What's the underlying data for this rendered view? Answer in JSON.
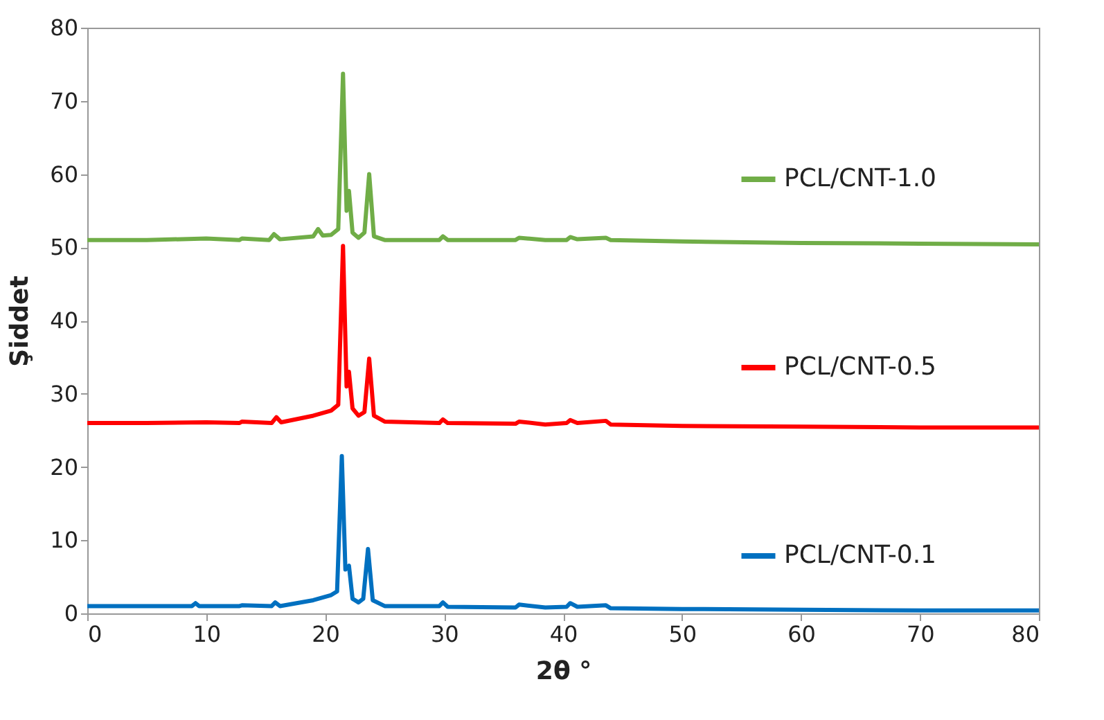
{
  "chart_data": {
    "type": "line",
    "xlabel": "2θ °",
    "ylabel": "Şiddet",
    "xlim": [
      0,
      80
    ],
    "ylim": [
      0,
      80
    ],
    "xticks": [
      0,
      10,
      20,
      30,
      40,
      50,
      60,
      70,
      80
    ],
    "yticks": [
      0,
      10,
      20,
      30,
      40,
      50,
      60,
      70,
      80
    ],
    "grid": false,
    "legend": "right",
    "line_style": "solid",
    "series": [
      {
        "name": "PCL/CNT-1.0",
        "color": "#70ad47",
        "x": [
          0,
          5,
          10,
          12.8,
          13,
          15.3,
          15.7,
          16.2,
          19,
          19.4,
          19.8,
          20.5,
          21.1,
          21.5,
          21.8,
          22.0,
          22.3,
          22.8,
          23.3,
          23.7,
          24.1,
          25,
          29.6,
          29.9,
          30.3,
          36,
          36.3,
          38.5,
          40.3,
          40.6,
          41.2,
          43.6,
          44,
          50,
          60,
          70,
          80
        ],
        "values": [
          51,
          51,
          51.2,
          51,
          51.2,
          51,
          51.8,
          51.1,
          51.5,
          52.5,
          51.6,
          51.7,
          52.5,
          73.7,
          55,
          57.7,
          52,
          51.3,
          52,
          60,
          51.5,
          51,
          51,
          51.5,
          51,
          51,
          51.3,
          51,
          51,
          51.4,
          51.1,
          51.3,
          51,
          50.8,
          50.6,
          50.5,
          50.4
        ]
      },
      {
        "name": "PCL/CNT-0.5",
        "color": "#ff0000",
        "x": [
          0,
          5,
          10,
          12.8,
          13,
          15.5,
          15.9,
          16.3,
          19,
          20.5,
          21.1,
          21.5,
          21.8,
          22.0,
          22.3,
          22.8,
          23.3,
          23.7,
          24.1,
          25,
          29.6,
          29.9,
          30.3,
          36,
          36.3,
          38.5,
          40.3,
          40.6,
          41.2,
          43.6,
          44,
          50,
          60,
          70,
          80
        ],
        "values": [
          26,
          26,
          26.1,
          26,
          26.2,
          26,
          26.8,
          26.1,
          27,
          27.7,
          28.5,
          50.2,
          31,
          33,
          28,
          27,
          27.5,
          34.8,
          27,
          26.2,
          26,
          26.5,
          26,
          25.9,
          26.2,
          25.8,
          26,
          26.4,
          26,
          26.3,
          25.8,
          25.6,
          25.5,
          25.4,
          25.4
        ]
      },
      {
        "name": "PCL/CNT-0.1",
        "color": "#0070c0",
        "x": [
          0,
          5,
          8.8,
          9.1,
          9.4,
          12.8,
          13,
          15.5,
          15.8,
          16.2,
          19,
          20.5,
          21.0,
          21.4,
          21.7,
          22.0,
          22.3,
          22.8,
          23.2,
          23.6,
          24.0,
          25,
          29.6,
          29.9,
          30.3,
          36,
          36.3,
          38.5,
          40.3,
          40.6,
          41.2,
          43.6,
          44,
          50,
          60,
          70,
          80
        ],
        "values": [
          1,
          1,
          1,
          1.4,
          1,
          1,
          1.1,
          1,
          1.5,
          1,
          1.8,
          2.5,
          3,
          21.5,
          6,
          6.5,
          2,
          1.5,
          2,
          8.8,
          1.8,
          1,
          1,
          1.5,
          0.9,
          0.8,
          1.2,
          0.8,
          0.9,
          1.4,
          0.9,
          1.1,
          0.7,
          0.6,
          0.5,
          0.4,
          0.4
        ]
      }
    ]
  }
}
